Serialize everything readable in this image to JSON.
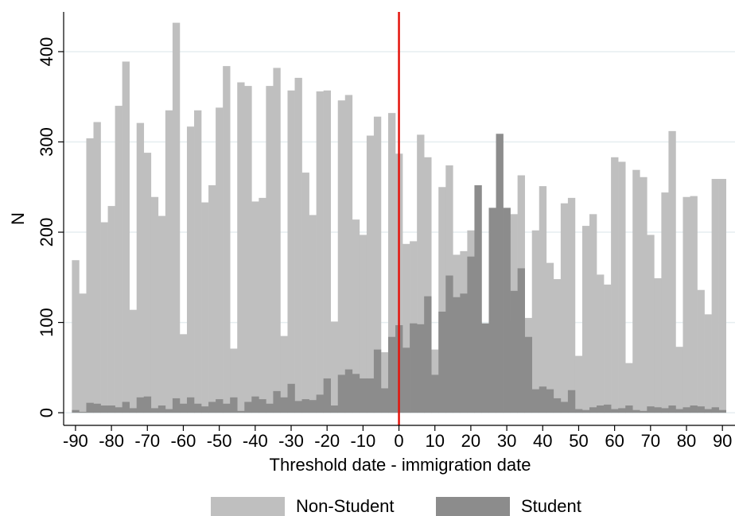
{
  "chart_data": {
    "type": "histogram",
    "xlabel": "Threshold date - immigration date",
    "ylabel": "N",
    "bins": [
      -91,
      -89,
      -87,
      -85,
      -83,
      -81,
      -79,
      -77,
      -75,
      -73,
      -71,
      -69,
      -67,
      -65,
      -63,
      -61,
      -59,
      -57,
      -55,
      -53,
      -51,
      -49,
      -47,
      -45,
      -43,
      -41,
      -39,
      -37,
      -35,
      -33,
      -31,
      -29,
      -27,
      -25,
      -23,
      -21,
      -19,
      -17,
      -15,
      -13,
      -11,
      -9,
      -7,
      -5,
      -3,
      -1,
      1,
      3,
      5,
      7,
      9,
      11,
      13,
      15,
      17,
      19,
      21,
      23,
      25,
      27,
      29,
      31,
      33,
      35,
      37,
      39,
      41,
      43,
      45,
      47,
      49,
      51,
      53,
      55,
      57,
      59,
      61,
      63,
      65,
      67,
      69,
      71,
      73,
      75,
      77,
      79,
      81,
      83,
      85,
      87,
      89,
      91
    ],
    "series": [
      {
        "name": "Non-Student",
        "color": "#bfbfbf",
        "values": [
          169,
          132,
          304,
          322,
          211,
          229,
          340,
          389,
          114,
          321,
          288,
          239,
          218,
          335,
          432,
          87,
          317,
          335,
          233,
          252,
          338,
          384,
          71,
          366,
          362,
          234,
          238,
          362,
          382,
          85,
          357,
          371,
          266,
          219,
          356,
          357,
          101,
          346,
          352,
          214,
          197,
          307,
          328,
          67,
          332,
          287,
          187,
          190,
          308,
          283,
          70,
          250,
          274,
          175,
          179,
          202,
          100,
          98,
          170,
          225,
          101,
          220,
          263,
          105,
          202,
          251,
          166,
          148,
          232,
          238,
          63,
          207,
          220,
          153,
          142,
          283,
          278,
          55,
          269,
          261,
          197,
          149,
          244,
          312,
          73,
          239,
          240,
          136,
          109,
          259,
          259
        ]
      },
      {
        "name": "Student",
        "color": "#8c8c8c",
        "values": [
          3,
          1,
          11,
          10,
          8,
          8,
          6,
          12,
          5,
          17,
          18,
          5,
          8,
          4,
          16,
          10,
          17,
          10,
          7,
          12,
          15,
          10,
          17,
          2,
          12,
          18,
          15,
          10,
          24,
          17,
          32,
          13,
          15,
          14,
          20,
          38,
          8,
          42,
          48,
          43,
          38,
          38,
          70,
          27,
          84,
          97,
          72,
          99,
          98,
          129,
          42,
          112,
          152,
          128,
          132,
          173,
          252,
          99,
          227,
          309,
          227,
          135,
          160,
          84,
          26,
          29,
          26,
          16,
          12,
          25,
          4,
          3,
          6,
          8,
          9,
          4,
          5,
          8,
          3,
          2,
          7,
          6,
          5,
          8,
          4,
          6,
          8,
          7,
          4,
          6,
          3
        ]
      }
    ],
    "vline": 0,
    "vline_color": "#e3120b",
    "xlim": [
      -93.3,
      93.5
    ],
    "ylim": [
      -14,
      444
    ],
    "xticks": [
      -90,
      -80,
      -70,
      -60,
      -50,
      -40,
      -30,
      -20,
      -10,
      0,
      10,
      20,
      30,
      40,
      50,
      60,
      70,
      80,
      90
    ],
    "yticks": [
      0,
      100,
      200,
      300,
      400
    ],
    "grid": true
  }
}
